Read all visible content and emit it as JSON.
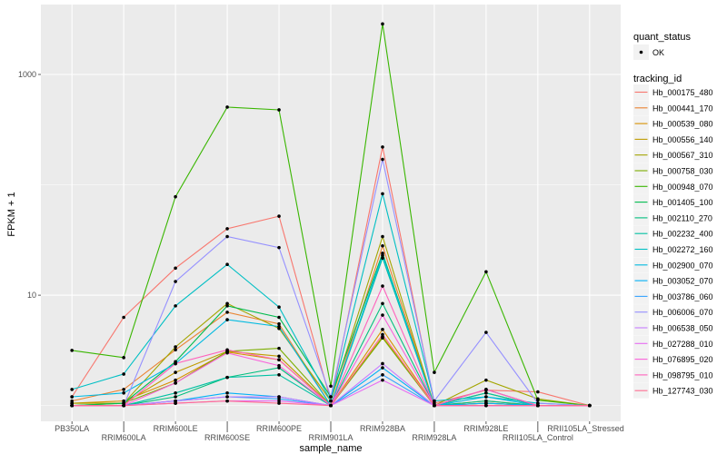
{
  "chart_data": {
    "type": "line",
    "xlabel": "sample_name",
    "ylabel": "FPKM + 1",
    "yscale": "log10",
    "yticks": [
      10,
      1000
    ],
    "ylim": [
      0.72,
      4300
    ],
    "grid": true,
    "legend_position": "right",
    "point_legend": {
      "title": "quant_status",
      "entries": [
        "OK"
      ],
      "point_color": "#000000"
    },
    "color_legend_title": "tracking_id",
    "categories": [
      "PB350LA",
      "RRIM600LA",
      "RRIM600LE",
      "RRIM600SE",
      "RRIM600PE",
      "RRIM901LA",
      "RRIM928BA",
      "RRIM928LA",
      "RRIM928LE",
      "RRII105LA_Control",
      "RRII105LA_Stressed"
    ],
    "series": [
      {
        "name": "Hb_000175_480",
        "color": "#F8766D",
        "values": [
          1.2,
          6.3,
          17.6,
          40,
          52,
          1.1,
          220,
          1.05,
          1.38,
          1.33,
          1.0
        ]
      },
      {
        "name": "Hb_000441_170",
        "color": "#EA8331",
        "values": [
          1.1,
          1.4,
          3.2,
          7.0,
          5.5,
          1.0,
          28,
          1.0,
          1.1,
          1.0,
          1.0
        ]
      },
      {
        "name": "Hb_000539_080",
        "color": "#D89000",
        "values": [
          1.05,
          1.1,
          1.7,
          3.05,
          2.6,
          1.0,
          4.9,
          1.0,
          1.05,
          1.0,
          1.0
        ]
      },
      {
        "name": "Hb_000556_140",
        "color": "#C09B00",
        "values": [
          1.05,
          1.05,
          2.0,
          3.1,
          2.8,
          1.0,
          4.2,
          1.0,
          1.05,
          1.0,
          1.0
        ]
      },
      {
        "name": "Hb_000567_310",
        "color": "#A3A500",
        "values": [
          1.05,
          1.05,
          3.4,
          8.4,
          5.0,
          1.1,
          34,
          1.0,
          1.7,
          1.15,
          1.0
        ]
      },
      {
        "name": "Hb_000758_030",
        "color": "#7CAE00",
        "values": [
          1.0,
          1.05,
          1.6,
          3.1,
          3.3,
          1.0,
          4.1,
          1.0,
          1.3,
          1.0,
          1.0
        ]
      },
      {
        "name": "Hb_000948_070",
        "color": "#39B600",
        "values": [
          3.16,
          2.72,
          78,
          506,
          478,
          1.5,
          2870,
          2.0,
          16.3,
          1.12,
          1.0
        ]
      },
      {
        "name": "Hb_001405_100",
        "color": "#00BB4E",
        "values": [
          1.0,
          1.05,
          2.5,
          8.0,
          6.3,
          1.2,
          24,
          1.0,
          1.4,
          1.0,
          1.0
        ]
      },
      {
        "name": "Hb_002110_270",
        "color": "#00BF7D",
        "values": [
          1.0,
          1.0,
          1.2,
          1.8,
          2.2,
          1.0,
          8.4,
          1.0,
          1.1,
          1.0,
          1.0
        ]
      },
      {
        "name": "Hb_002232_400",
        "color": "#00C1A3",
        "values": [
          1.0,
          1.0,
          1.3,
          1.8,
          1.9,
          1.0,
          21.7,
          1.0,
          1.3,
          1.0,
          1.0
        ]
      },
      {
        "name": "Hb_002272_160",
        "color": "#00BFC4",
        "values": [
          1.4,
          1.93,
          8.0,
          19,
          7.8,
          1.1,
          83,
          1.1,
          1.2,
          1.05,
          1.0
        ]
      },
      {
        "name": "Hb_002900_070",
        "color": "#00BAE0",
        "values": [
          1.2,
          1.3,
          2.4,
          6.0,
          5.2,
          1.0,
          23,
          1.0,
          1.2,
          1.0,
          1.0
        ]
      },
      {
        "name": "Hb_003052_070",
        "color": "#00B0F6",
        "values": [
          1.0,
          1.0,
          1.1,
          1.3,
          1.2,
          1.0,
          2.2,
          1.0,
          1.05,
          1.0,
          1.0
        ]
      },
      {
        "name": "Hb_003786_060",
        "color": "#35A2FF",
        "values": [
          1.0,
          1.0,
          1.1,
          1.2,
          1.15,
          1.0,
          1.9,
          1.0,
          1.0,
          1.0,
          1.0
        ]
      },
      {
        "name": "Hb_006006_070",
        "color": "#9590FF",
        "values": [
          1.0,
          1.0,
          13.3,
          34,
          27,
          1.2,
          170,
          1.1,
          4.6,
          1.05,
          1.0
        ]
      },
      {
        "name": "Hb_006538_050",
        "color": "#C77CFF",
        "values": [
          1.0,
          1.0,
          1.1,
          1.2,
          1.2,
          1.0,
          2.4,
          1.0,
          1.0,
          1.0,
          1.0
        ]
      },
      {
        "name": "Hb_027288_010",
        "color": "#E76BF3",
        "values": [
          1.0,
          1.0,
          1.05,
          1.1,
          1.1,
          1.0,
          1.7,
          1.0,
          1.0,
          1.0,
          1.0
        ]
      },
      {
        "name": "Hb_076895_020",
        "color": "#FA62DB",
        "values": [
          1.0,
          1.0,
          1.6,
          3.0,
          2.3,
          1.0,
          6.6,
          1.0,
          1.4,
          1.0,
          1.0
        ]
      },
      {
        "name": "Hb_098795_010",
        "color": "#FF62BC",
        "values": [
          1.0,
          1.0,
          2.4,
          3.2,
          2.6,
          1.0,
          12.1,
          1.0,
          1.4,
          1.0,
          1.0
        ]
      },
      {
        "name": "Hb_127743_030",
        "color": "#FF6C91",
        "values": [
          1.0,
          1.0,
          1.05,
          1.1,
          1.05,
          1.0,
          4.4,
          1.0,
          1.0,
          1.0,
          1.0
        ]
      }
    ]
  }
}
